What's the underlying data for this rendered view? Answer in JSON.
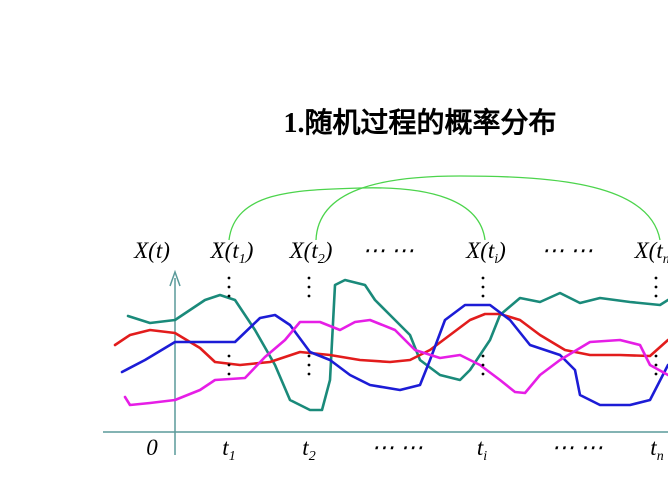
{
  "title": "1.随机过程的概率分布",
  "top_labels": [
    {
      "main": "X(t)"
    },
    {
      "main": "X(t",
      "sub": "1",
      "end": ")"
    },
    {
      "main": "X(t",
      "sub": "2",
      "end": ")"
    },
    {
      "main": "⋯ ⋯"
    },
    {
      "main": "X(t",
      "sub": "i",
      "end": ")"
    },
    {
      "main": "⋯ ⋯"
    },
    {
      "main": "X(t",
      "sub": "n",
      "end": ")"
    }
  ],
  "bottom_labels": [
    {
      "main": "0"
    },
    {
      "main": "t",
      "sub": "1"
    },
    {
      "main": "t",
      "sub": "2"
    },
    {
      "main": "⋯ ⋯"
    },
    {
      "main": "t",
      "sub": "i"
    },
    {
      "main": "⋯ ⋯"
    },
    {
      "main": "t",
      "sub": "n"
    }
  ]
}
